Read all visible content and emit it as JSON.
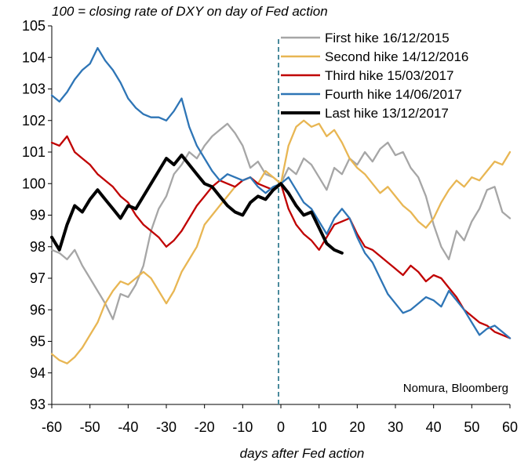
{
  "chart_data": {
    "type": "line",
    "title": "100 = closing rate of DXY on day of Fed action",
    "xlabel": "days after Fed action",
    "ylabel": "",
    "source": "Nomura, Bloomberg",
    "xlim": [
      -60,
      60
    ],
    "ylim": [
      93,
      105
    ],
    "x_ticks": [
      -60,
      -50,
      -40,
      -30,
      -20,
      -10,
      0,
      10,
      20,
      30,
      40,
      50,
      60
    ],
    "y_ticks": [
      93,
      94,
      95,
      96,
      97,
      98,
      99,
      100,
      101,
      102,
      103,
      104,
      105
    ],
    "event_day": 0,
    "legend_position": "top-right",
    "grid": false,
    "series": [
      {
        "name": "First hike 16/12/2015",
        "color": "#a6a6a6",
        "points": [
          [
            -60,
            97.9
          ],
          [
            -58,
            97.8
          ],
          [
            -56,
            97.6
          ],
          [
            -54,
            97.9
          ],
          [
            -52,
            97.4
          ],
          [
            -50,
            97.0
          ],
          [
            -48,
            96.6
          ],
          [
            -46,
            96.2
          ],
          [
            -44,
            95.7
          ],
          [
            -42,
            96.5
          ],
          [
            -40,
            96.4
          ],
          [
            -38,
            96.8
          ],
          [
            -36,
            97.4
          ],
          [
            -34,
            98.5
          ],
          [
            -32,
            99.2
          ],
          [
            -30,
            99.6
          ],
          [
            -28,
            100.3
          ],
          [
            -26,
            100.6
          ],
          [
            -24,
            101.0
          ],
          [
            -22,
            100.8
          ],
          [
            -20,
            101.2
          ],
          [
            -18,
            101.5
          ],
          [
            -16,
            101.7
          ],
          [
            -14,
            101.9
          ],
          [
            -12,
            101.6
          ],
          [
            -10,
            101.2
          ],
          [
            -8,
            100.5
          ],
          [
            -6,
            100.7
          ],
          [
            -4,
            100.3
          ],
          [
            -2,
            100.2
          ],
          [
            0,
            100.0
          ],
          [
            2,
            100.5
          ],
          [
            4,
            100.3
          ],
          [
            6,
            100.8
          ],
          [
            8,
            100.6
          ],
          [
            10,
            100.2
          ],
          [
            12,
            99.8
          ],
          [
            14,
            100.5
          ],
          [
            16,
            100.3
          ],
          [
            18,
            100.8
          ],
          [
            20,
            100.6
          ],
          [
            22,
            101.0
          ],
          [
            24,
            100.7
          ],
          [
            26,
            101.1
          ],
          [
            28,
            101.3
          ],
          [
            30,
            100.9
          ],
          [
            32,
            101.0
          ],
          [
            34,
            100.5
          ],
          [
            36,
            100.2
          ],
          [
            38,
            99.6
          ],
          [
            40,
            98.7
          ],
          [
            42,
            98.0
          ],
          [
            44,
            97.6
          ],
          [
            46,
            98.5
          ],
          [
            48,
            98.2
          ],
          [
            50,
            98.8
          ],
          [
            52,
            99.2
          ],
          [
            54,
            99.8
          ],
          [
            56,
            99.9
          ],
          [
            58,
            99.1
          ],
          [
            60,
            98.9
          ]
        ]
      },
      {
        "name": "Second hike 14/12/2016",
        "color": "#e8b653",
        "points": [
          [
            -60,
            94.6
          ],
          [
            -58,
            94.4
          ],
          [
            -56,
            94.3
          ],
          [
            -54,
            94.5
          ],
          [
            -52,
            94.8
          ],
          [
            -50,
            95.2
          ],
          [
            -48,
            95.6
          ],
          [
            -46,
            96.2
          ],
          [
            -44,
            96.6
          ],
          [
            -42,
            96.9
          ],
          [
            -40,
            96.8
          ],
          [
            -38,
            97.0
          ],
          [
            -36,
            97.2
          ],
          [
            -34,
            97.0
          ],
          [
            -32,
            96.6
          ],
          [
            -30,
            96.2
          ],
          [
            -28,
            96.6
          ],
          [
            -26,
            97.2
          ],
          [
            -24,
            97.6
          ],
          [
            -22,
            98.0
          ],
          [
            -20,
            98.7
          ],
          [
            -18,
            99.0
          ],
          [
            -16,
            99.3
          ],
          [
            -14,
            99.6
          ],
          [
            -12,
            99.9
          ],
          [
            -10,
            100.1
          ],
          [
            -8,
            100.2
          ],
          [
            -6,
            100.0
          ],
          [
            -4,
            100.4
          ],
          [
            -2,
            100.2
          ],
          [
            0,
            100.0
          ],
          [
            2,
            101.2
          ],
          [
            4,
            101.8
          ],
          [
            6,
            102.0
          ],
          [
            8,
            101.8
          ],
          [
            10,
            101.9
          ],
          [
            12,
            101.5
          ],
          [
            14,
            101.7
          ],
          [
            16,
            101.3
          ],
          [
            18,
            100.8
          ],
          [
            20,
            100.5
          ],
          [
            22,
            100.3
          ],
          [
            24,
            100.0
          ],
          [
            26,
            99.7
          ],
          [
            28,
            99.9
          ],
          [
            30,
            99.6
          ],
          [
            32,
            99.3
          ],
          [
            34,
            99.1
          ],
          [
            36,
            98.8
          ],
          [
            38,
            98.6
          ],
          [
            40,
            98.9
          ],
          [
            42,
            99.4
          ],
          [
            44,
            99.8
          ],
          [
            46,
            100.1
          ],
          [
            48,
            99.9
          ],
          [
            50,
            100.2
          ],
          [
            52,
            100.1
          ],
          [
            54,
            100.4
          ],
          [
            56,
            100.7
          ],
          [
            58,
            100.6
          ],
          [
            60,
            101.0
          ]
        ]
      },
      {
        "name": "Third hike 15/03/2017",
        "color": "#c00000",
        "points": [
          [
            -60,
            101.3
          ],
          [
            -58,
            101.2
          ],
          [
            -56,
            101.5
          ],
          [
            -54,
            101.0
          ],
          [
            -52,
            100.8
          ],
          [
            -50,
            100.6
          ],
          [
            -48,
            100.3
          ],
          [
            -46,
            100.1
          ],
          [
            -44,
            99.9
          ],
          [
            -42,
            99.6
          ],
          [
            -40,
            99.4
          ],
          [
            -38,
            99.0
          ],
          [
            -36,
            98.7
          ],
          [
            -34,
            98.5
          ],
          [
            -32,
            98.3
          ],
          [
            -30,
            98.0
          ],
          [
            -28,
            98.2
          ],
          [
            -26,
            98.5
          ],
          [
            -24,
            98.9
          ],
          [
            -22,
            99.3
          ],
          [
            -20,
            99.6
          ],
          [
            -18,
            99.9
          ],
          [
            -16,
            100.1
          ],
          [
            -14,
            100.0
          ],
          [
            -12,
            99.9
          ],
          [
            -10,
            100.1
          ],
          [
            -8,
            100.2
          ],
          [
            -6,
            100.0
          ],
          [
            -4,
            99.9
          ],
          [
            -2,
            99.8
          ],
          [
            0,
            100.0
          ],
          [
            2,
            99.2
          ],
          [
            4,
            98.7
          ],
          [
            6,
            98.4
          ],
          [
            8,
            98.2
          ],
          [
            10,
            97.9
          ],
          [
            12,
            98.3
          ],
          [
            14,
            98.7
          ],
          [
            16,
            98.8
          ],
          [
            18,
            98.9
          ],
          [
            20,
            98.4
          ],
          [
            22,
            98.0
          ],
          [
            24,
            97.9
          ],
          [
            26,
            97.7
          ],
          [
            28,
            97.5
          ],
          [
            30,
            97.3
          ],
          [
            32,
            97.1
          ],
          [
            34,
            97.4
          ],
          [
            36,
            97.2
          ],
          [
            38,
            96.9
          ],
          [
            40,
            97.1
          ],
          [
            42,
            97.0
          ],
          [
            44,
            96.7
          ],
          [
            46,
            96.4
          ],
          [
            48,
            96.0
          ],
          [
            50,
            95.8
          ],
          [
            52,
            95.6
          ],
          [
            54,
            95.5
          ],
          [
            56,
            95.3
          ],
          [
            58,
            95.2
          ],
          [
            60,
            95.1
          ]
        ]
      },
      {
        "name": "Fourth hike 14/06/2017",
        "color": "#2e75b6",
        "points": [
          [
            -60,
            102.8
          ],
          [
            -58,
            102.6
          ],
          [
            -56,
            102.9
          ],
          [
            -54,
            103.3
          ],
          [
            -52,
            103.6
          ],
          [
            -50,
            103.8
          ],
          [
            -48,
            104.3
          ],
          [
            -46,
            103.9
          ],
          [
            -44,
            103.6
          ],
          [
            -42,
            103.2
          ],
          [
            -40,
            102.7
          ],
          [
            -38,
            102.4
          ],
          [
            -36,
            102.2
          ],
          [
            -34,
            102.1
          ],
          [
            -32,
            102.1
          ],
          [
            -30,
            102.0
          ],
          [
            -28,
            102.3
          ],
          [
            -26,
            102.7
          ],
          [
            -24,
            101.8
          ],
          [
            -22,
            101.2
          ],
          [
            -20,
            100.8
          ],
          [
            -18,
            100.4
          ],
          [
            -16,
            100.1
          ],
          [
            -14,
            100.3
          ],
          [
            -12,
            100.2
          ],
          [
            -10,
            100.1
          ],
          [
            -8,
            100.2
          ],
          [
            -6,
            99.9
          ],
          [
            -4,
            99.7
          ],
          [
            -2,
            99.9
          ],
          [
            0,
            100.0
          ],
          [
            2,
            100.2
          ],
          [
            4,
            99.8
          ],
          [
            6,
            99.4
          ],
          [
            8,
            99.2
          ],
          [
            10,
            98.8
          ],
          [
            12,
            98.4
          ],
          [
            14,
            98.9
          ],
          [
            16,
            99.2
          ],
          [
            18,
            98.9
          ],
          [
            20,
            98.3
          ],
          [
            22,
            97.8
          ],
          [
            24,
            97.5
          ],
          [
            26,
            97.0
          ],
          [
            28,
            96.5
          ],
          [
            30,
            96.2
          ],
          [
            32,
            95.9
          ],
          [
            34,
            96.0
          ],
          [
            36,
            96.2
          ],
          [
            38,
            96.4
          ],
          [
            40,
            96.3
          ],
          [
            42,
            96.1
          ],
          [
            44,
            96.6
          ],
          [
            46,
            96.3
          ],
          [
            48,
            96.0
          ],
          [
            50,
            95.6
          ],
          [
            52,
            95.2
          ],
          [
            54,
            95.4
          ],
          [
            56,
            95.5
          ],
          [
            58,
            95.3
          ],
          [
            60,
            95.1
          ]
        ]
      },
      {
        "name": "Last hike 13/12/2017",
        "color": "#000000",
        "points": [
          [
            -60,
            98.3
          ],
          [
            -58,
            97.9
          ],
          [
            -56,
            98.7
          ],
          [
            -54,
            99.3
          ],
          [
            -52,
            99.1
          ],
          [
            -50,
            99.5
          ],
          [
            -48,
            99.8
          ],
          [
            -46,
            99.5
          ],
          [
            -44,
            99.2
          ],
          [
            -42,
            98.9
          ],
          [
            -40,
            99.3
          ],
          [
            -38,
            99.2
          ],
          [
            -36,
            99.6
          ],
          [
            -34,
            100.0
          ],
          [
            -32,
            100.4
          ],
          [
            -30,
            100.8
          ],
          [
            -28,
            100.6
          ],
          [
            -26,
            100.9
          ],
          [
            -24,
            100.6
          ],
          [
            -22,
            100.3
          ],
          [
            -20,
            100.0
          ],
          [
            -18,
            99.9
          ],
          [
            -16,
            99.6
          ],
          [
            -14,
            99.3
          ],
          [
            -12,
            99.1
          ],
          [
            -10,
            99.0
          ],
          [
            -8,
            99.4
          ],
          [
            -6,
            99.6
          ],
          [
            -4,
            99.5
          ],
          [
            -2,
            99.8
          ],
          [
            0,
            100.0
          ],
          [
            2,
            99.7
          ],
          [
            4,
            99.3
          ],
          [
            6,
            99.0
          ],
          [
            8,
            99.1
          ],
          [
            10,
            98.6
          ],
          [
            12,
            98.1
          ],
          [
            14,
            97.9
          ],
          [
            16,
            97.8
          ]
        ]
      }
    ]
  }
}
